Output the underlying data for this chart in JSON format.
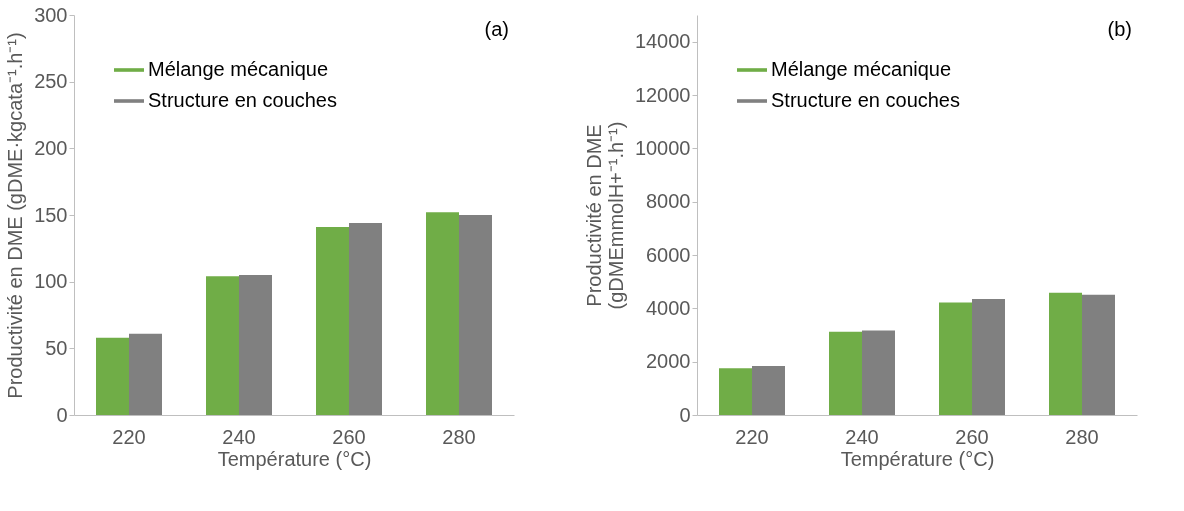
{
  "chart_data": [
    {
      "type": "bar",
      "categories": [
        "220",
        "240",
        "260",
        "280"
      ],
      "xlabel": "Température (°C)",
      "ylabel": "Productivité en DME (gDME·kgcata⁻¹.h⁻¹)",
      "ylim": [
        0,
        300
      ],
      "yticks": [
        0,
        50,
        100,
        150,
        200,
        250,
        300
      ],
      "grid": false,
      "legend": "top left",
      "annotations": [
        "(a)"
      ],
      "series": [
        {
          "name": "Mélange mécanique",
          "color": "#70ad47",
          "values": [
            58,
            104,
            141,
            152
          ]
        },
        {
          "name": "Structure en couches",
          "color": "#808080",
          "values": [
            61,
            105,
            144,
            150
          ]
        }
      ]
    },
    {
      "type": "bar",
      "categories": [
        "220",
        "240",
        "260",
        "280"
      ],
      "xlabel": "Température (°C)",
      "ylabel": "Productivité en DME\n(gDMEmmolH+⁻¹.h⁻¹)",
      "ylim": [
        0,
        15000
      ],
      "yticks": [
        0,
        2000,
        4000,
        6000,
        8000,
        10000,
        12000,
        14000
      ],
      "grid": false,
      "legend": "top left",
      "annotations": [
        "(b)"
      ],
      "series": [
        {
          "name": "Mélange mécanique",
          "color": "#70ad47",
          "values": [
            1750,
            3120,
            4220,
            4580
          ]
        },
        {
          "name": "Structure en couches",
          "color": "#808080",
          "values": [
            1840,
            3170,
            4350,
            4510
          ]
        }
      ]
    }
  ]
}
